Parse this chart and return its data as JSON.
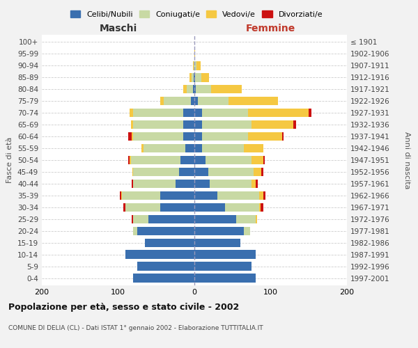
{
  "age_groups": [
    "0-4",
    "5-9",
    "10-14",
    "15-19",
    "20-24",
    "25-29",
    "30-34",
    "35-39",
    "40-44",
    "45-49",
    "50-54",
    "55-59",
    "60-64",
    "65-69",
    "70-74",
    "75-79",
    "80-84",
    "85-89",
    "90-94",
    "95-99",
    "100+"
  ],
  "birth_years": [
    "1997-2001",
    "1992-1996",
    "1987-1991",
    "1982-1986",
    "1977-1981",
    "1972-1976",
    "1967-1971",
    "1962-1966",
    "1957-1961",
    "1952-1956",
    "1947-1951",
    "1942-1946",
    "1937-1941",
    "1932-1936",
    "1927-1931",
    "1922-1926",
    "1917-1921",
    "1912-1916",
    "1907-1911",
    "1902-1906",
    "≤ 1901"
  ],
  "maschi": {
    "celibi": [
      80,
      75,
      90,
      65,
      75,
      60,
      45,
      45,
      25,
      20,
      18,
      12,
      15,
      15,
      15,
      5,
      2,
      1,
      0,
      0,
      0
    ],
    "coniugati": [
      0,
      0,
      0,
      0,
      5,
      20,
      45,
      50,
      55,
      60,
      65,
      55,
      65,
      65,
      65,
      35,
      8,
      3,
      1,
      0,
      0
    ],
    "vedovi": [
      0,
      0,
      0,
      0,
      0,
      0,
      0,
      1,
      0,
      1,
      2,
      2,
      2,
      3,
      5,
      5,
      5,
      2,
      1,
      0,
      0
    ],
    "divorziati": [
      0,
      0,
      0,
      0,
      0,
      2,
      3,
      2,
      2,
      0,
      2,
      0,
      5,
      0,
      0,
      0,
      0,
      0,
      0,
      0,
      0
    ]
  },
  "femmine": {
    "nubili": [
      80,
      75,
      80,
      60,
      65,
      55,
      40,
      30,
      20,
      18,
      15,
      10,
      10,
      10,
      10,
      5,
      2,
      1,
      0,
      0,
      0
    ],
    "coniugate": [
      0,
      0,
      0,
      0,
      8,
      25,
      45,
      55,
      55,
      60,
      60,
      55,
      60,
      65,
      60,
      40,
      20,
      8,
      3,
      0,
      0
    ],
    "vedove": [
      0,
      0,
      0,
      0,
      0,
      2,
      2,
      5,
      5,
      10,
      15,
      25,
      45,
      55,
      80,
      65,
      40,
      10,
      5,
      1,
      0
    ],
    "divorziate": [
      0,
      0,
      0,
      0,
      0,
      0,
      3,
      3,
      3,
      2,
      2,
      0,
      2,
      3,
      3,
      0,
      0,
      0,
      0,
      0,
      0
    ]
  },
  "colors": {
    "celibi_nubili": "#3a6faf",
    "coniugati": "#c8d9a4",
    "vedovi": "#f5c842",
    "divorziati": "#cc1111"
  },
  "xlim": 200,
  "title": "Popolazione per età, sesso e stato civile - 2002",
  "subtitle": "COMUNE DI DELIA (CL) - Dati ISTAT 1° gennaio 2002 - Elaborazione TUTTITALIA.IT",
  "xlabel_left": "Maschi",
  "xlabel_right": "Femmine",
  "ylabel_left": "Fasce di età",
  "ylabel_right": "Anni di nascita",
  "bg_color": "#f2f2f2",
  "plot_bg_color": "#ffffff"
}
